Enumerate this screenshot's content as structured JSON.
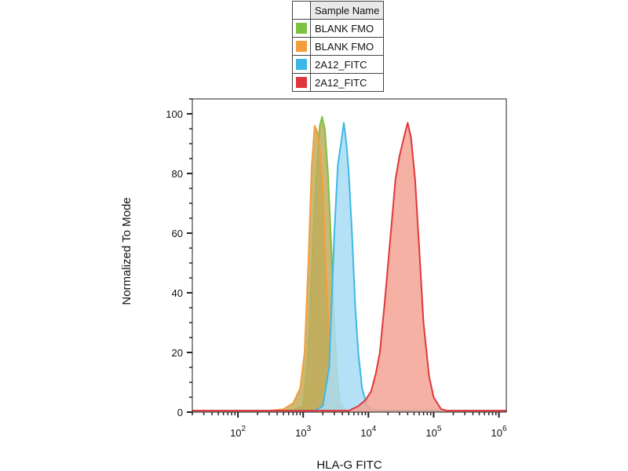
{
  "chart_data": {
    "type": "area",
    "title": "",
    "xlabel": "HLA-G FITC",
    "ylabel": "Normalized To Mode",
    "xscale": "log",
    "xlim": [
      20,
      1300000
    ],
    "ylim": [
      0,
      105
    ],
    "y_ticks": [
      0,
      20,
      40,
      60,
      80,
      100
    ],
    "x_ticks": [
      {
        "value": 100,
        "base": "10",
        "exp": "2"
      },
      {
        "value": 1000,
        "base": "10",
        "exp": "3"
      },
      {
        "value": 10000,
        "base": "10",
        "exp": "4"
      },
      {
        "value": 100000,
        "base": "10",
        "exp": "5"
      },
      {
        "value": 1000000,
        "base": "10",
        "exp": "6"
      }
    ],
    "legend": {
      "header": "Sample Name",
      "placement": "top-center"
    },
    "series": [
      {
        "name": "BLANK FMO",
        "color": "#7dc242",
        "fill": "#c0ad5c",
        "points": [
          [
            20,
            0.5
          ],
          [
            700,
            0.5
          ],
          [
            1000,
            2
          ],
          [
            1200,
            20
          ],
          [
            1400,
            55
          ],
          [
            1600,
            80
          ],
          [
            1800,
            96
          ],
          [
            1950,
            99
          ],
          [
            2150,
            95
          ],
          [
            2400,
            80
          ],
          [
            2700,
            55
          ],
          [
            3000,
            30
          ],
          [
            3300,
            12
          ],
          [
            3700,
            3
          ],
          [
            4500,
            0.5
          ],
          [
            1300000,
            0.5
          ]
        ]
      },
      {
        "name": "BLANK FMO",
        "color": "#f59d3d",
        "fill": "#c0ad5c",
        "points": [
          [
            20,
            0.5
          ],
          [
            300,
            0.5
          ],
          [
            500,
            1
          ],
          [
            700,
            3
          ],
          [
            900,
            8
          ],
          [
            1050,
            20
          ],
          [
            1200,
            50
          ],
          [
            1350,
            82
          ],
          [
            1500,
            96
          ],
          [
            1650,
            94
          ],
          [
            1800,
            88
          ],
          [
            2000,
            75
          ],
          [
            2200,
            50
          ],
          [
            2500,
            25
          ],
          [
            2800,
            10
          ],
          [
            3200,
            3
          ],
          [
            4000,
            0.5
          ],
          [
            1300000,
            0.5
          ]
        ]
      },
      {
        "name": "2A12_FITC",
        "color": "#3cb8e6",
        "fill": "#a8dcf5",
        "points": [
          [
            20,
            0.5
          ],
          [
            1500,
            0.5
          ],
          [
            2000,
            2
          ],
          [
            2500,
            15
          ],
          [
            3000,
            60
          ],
          [
            3400,
            83
          ],
          [
            3800,
            90
          ],
          [
            4200,
            97
          ],
          [
            4600,
            90
          ],
          [
            5000,
            80
          ],
          [
            5600,
            60
          ],
          [
            6300,
            35
          ],
          [
            7000,
            20
          ],
          [
            8000,
            8
          ],
          [
            9500,
            2
          ],
          [
            12000,
            0.5
          ],
          [
            1300000,
            0.5
          ]
        ]
      },
      {
        "name": "2A12_FITC",
        "color": "#e1373c",
        "fill": "#f2a394",
        "points": [
          [
            20,
            0.5
          ],
          [
            5000,
            0.5
          ],
          [
            7000,
            2
          ],
          [
            9000,
            4
          ],
          [
            11000,
            7
          ],
          [
            13000,
            13
          ],
          [
            15000,
            20
          ],
          [
            18000,
            38
          ],
          [
            22000,
            60
          ],
          [
            26000,
            78
          ],
          [
            30000,
            86
          ],
          [
            35000,
            92
          ],
          [
            40000,
            97
          ],
          [
            45000,
            92
          ],
          [
            52000,
            78
          ],
          [
            60000,
            55
          ],
          [
            70000,
            30
          ],
          [
            85000,
            12
          ],
          [
            100000,
            5
          ],
          [
            130000,
            1
          ],
          [
            160000,
            0.5
          ],
          [
            1300000,
            0.5
          ]
        ]
      }
    ]
  }
}
